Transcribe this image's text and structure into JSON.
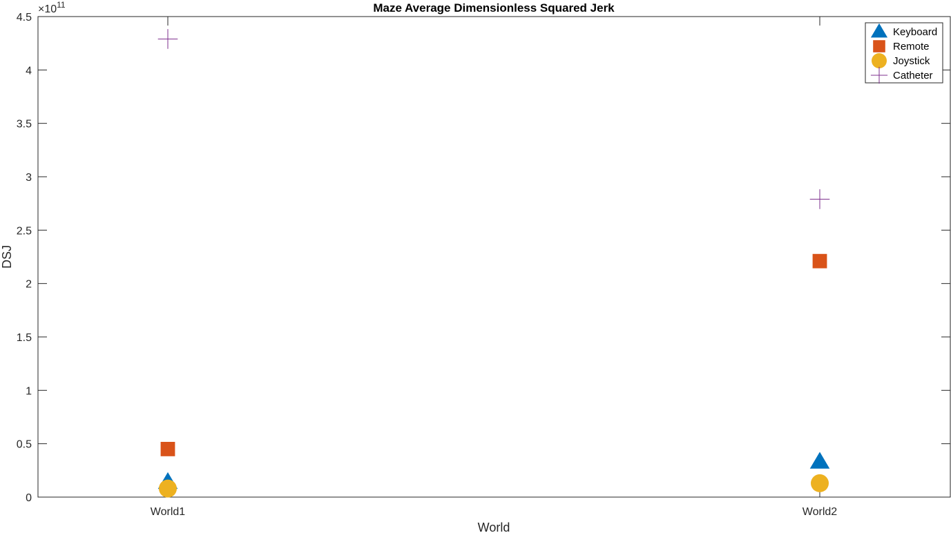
{
  "chart_data": {
    "type": "scatter",
    "title": "Maze Average Dimensionless Squared Jerk",
    "xlabel": "World",
    "ylabel": "DSJ",
    "categories": [
      "World1",
      "World2"
    ],
    "ylim": [
      0,
      4.5
    ],
    "y_exponent_label": "×10",
    "y_exponent_power": "11",
    "yticks": [
      0,
      0.5,
      1,
      1.5,
      2,
      2.5,
      3,
      3.5,
      4,
      4.5
    ],
    "ytick_labels": [
      "0",
      "0.5",
      "1",
      "1.5",
      "2",
      "2.5",
      "3",
      "3.5",
      "4",
      "4.5"
    ],
    "grid": false,
    "legend_position": "top-right",
    "series": [
      {
        "name": "Keyboard",
        "marker": "triangle",
        "color": "#0072BD",
        "values": [
          0.14,
          0.33
        ]
      },
      {
        "name": "Remote",
        "marker": "square",
        "color": "#D95319",
        "values": [
          0.45,
          2.21
        ]
      },
      {
        "name": "Joystick",
        "marker": "circle",
        "color": "#EDB120",
        "values": [
          0.08,
          0.13
        ]
      },
      {
        "name": "Catheter",
        "marker": "plus",
        "color": "#7E2F8E",
        "values": [
          4.29,
          2.79
        ]
      }
    ]
  }
}
